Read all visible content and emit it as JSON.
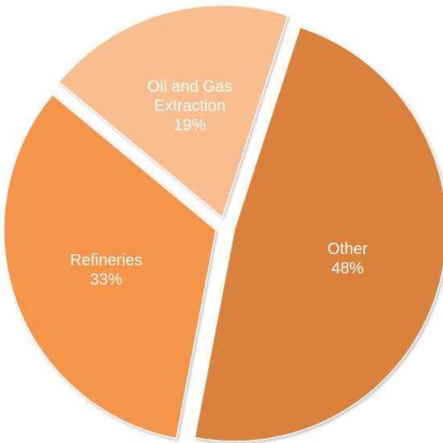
{
  "chart_data": {
    "type": "pie",
    "title": "",
    "slices": [
      {
        "label": "Other",
        "value": 48,
        "value_label": "48%",
        "color": "#D9823B",
        "text_color": "#ffffff"
      },
      {
        "label": "Refineries",
        "value": 33,
        "value_label": "33%",
        "color": "#F4954A",
        "text_color": "#ffffff"
      },
      {
        "label": "Oil and Gas\nExtraction",
        "value": 19,
        "value_label": "19%",
        "color": "#F8BE8F",
        "text_color": "#ffffff"
      }
    ],
    "exploded": true,
    "start_angle_deg": 18,
    "legend": "none"
  }
}
